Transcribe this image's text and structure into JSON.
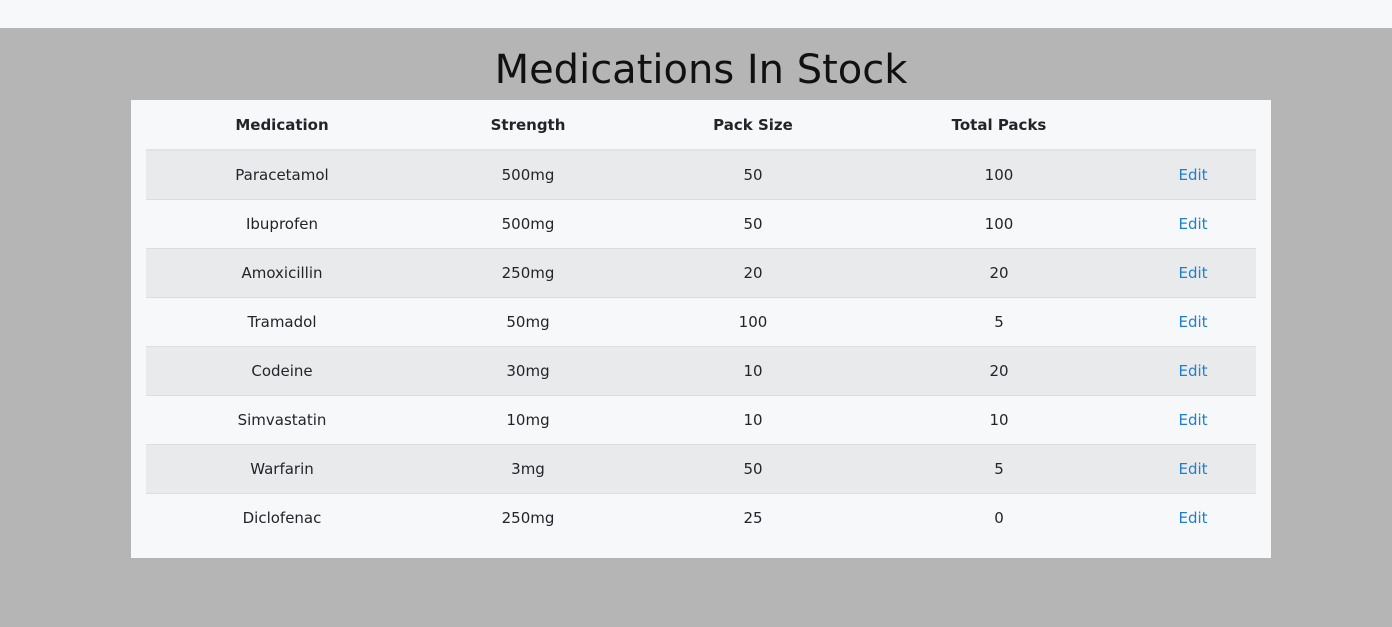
{
  "page": {
    "title": "Medications In Stock"
  },
  "table": {
    "headers": [
      "Medication",
      "Strength",
      "Pack Size",
      "Total Packs",
      ""
    ],
    "rows": [
      {
        "medication": "Paracetamol",
        "strength": "500mg",
        "pack_size": "50",
        "total_packs": "100",
        "action": "Edit"
      },
      {
        "medication": "Ibuprofen",
        "strength": "500mg",
        "pack_size": "50",
        "total_packs": "100",
        "action": "Edit"
      },
      {
        "medication": "Amoxicillin",
        "strength": "250mg",
        "pack_size": "20",
        "total_packs": "20",
        "action": "Edit"
      },
      {
        "medication": "Tramadol",
        "strength": "50mg",
        "pack_size": "100",
        "total_packs": "5",
        "action": "Edit"
      },
      {
        "medication": "Codeine",
        "strength": "30mg",
        "pack_size": "10",
        "total_packs": "20",
        "action": "Edit"
      },
      {
        "medication": "Simvastatin",
        "strength": "10mg",
        "pack_size": "10",
        "total_packs": "10",
        "action": "Edit"
      },
      {
        "medication": "Warfarin",
        "strength": "3mg",
        "pack_size": "50",
        "total_packs": "5",
        "action": "Edit"
      },
      {
        "medication": "Diclofenac",
        "strength": "250mg",
        "pack_size": "25",
        "total_packs": "0",
        "action": "Edit"
      }
    ]
  },
  "colors": {
    "background": "#b5b5b5",
    "card": "#f7f8fa",
    "striped_row": "#e9eaec",
    "link": "#1f7fcf"
  }
}
